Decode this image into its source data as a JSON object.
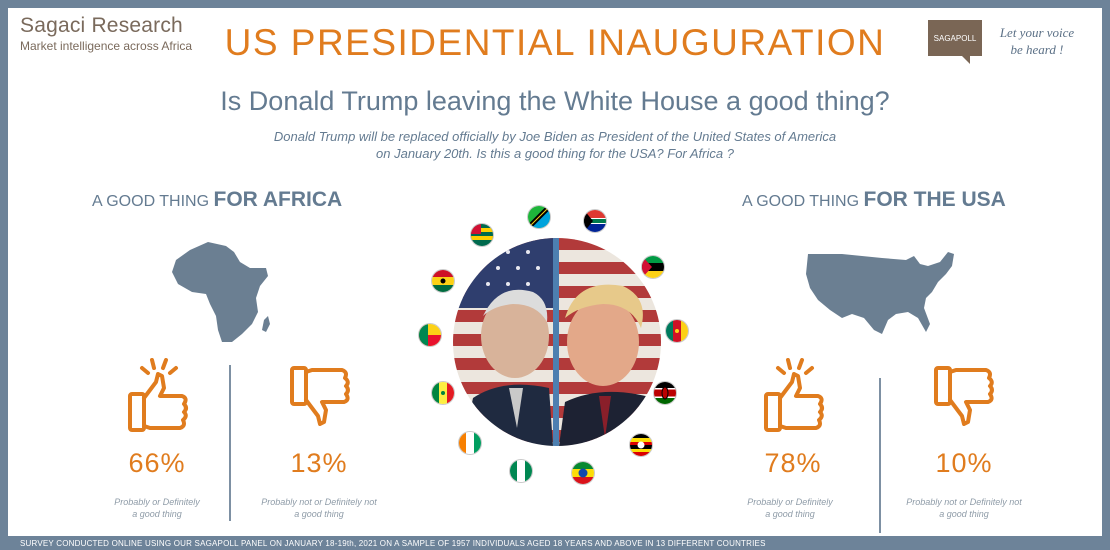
{
  "brand": {
    "name": "Sagaci Research",
    "tagline": "Market intelligence across Africa"
  },
  "title": "US PRESIDENTIAL INAUGURATION",
  "sagapoll": {
    "logo_text": "SAGAPOLL",
    "voice_line1": "Let your voice",
    "voice_line2": "be heard !"
  },
  "question": "Is Donald Trump leaving the White House a good thing?",
  "subtitle": {
    "line1": "Donald Trump will be replaced officially by Joe Biden as President of the United States of America",
    "line2": "on January 20th. Is this a good thing for the USA? For Africa ?"
  },
  "africa": {
    "heading_pre": "A GOOD THING ",
    "heading_bold": "FOR AFRICA",
    "good_pct": "66%",
    "good_label1": "Probably or Definitely",
    "good_label2": "a good thing",
    "bad_pct": "13%",
    "bad_label1": "Probably not or Definitely not",
    "bad_label2": "a good thing"
  },
  "usa": {
    "heading_pre": "A GOOD THING ",
    "heading_bold": "FOR THE USA",
    "good_pct": "78%",
    "good_label1": "Probably or Definitely",
    "good_label2": "a good thing",
    "bad_pct": "10%",
    "bad_label1": "Probably not or Definitely not",
    "bad_label2": "a good thing"
  },
  "colors": {
    "accent": "#e07c1e",
    "slate": "#647b91",
    "frame": "#6d8399",
    "map": "#6b7f92"
  },
  "footer": "SURVEY CONDUCTED ONLINE USING OUR SAGAPOLL PANEL ON JANUARY 18-19th, 2021 ON A SAMPLE OF 1957 INDIVIDUALS AGED 18 YEARS AND ABOVE IN 13 DIFFERENT COUNTRIES"
}
